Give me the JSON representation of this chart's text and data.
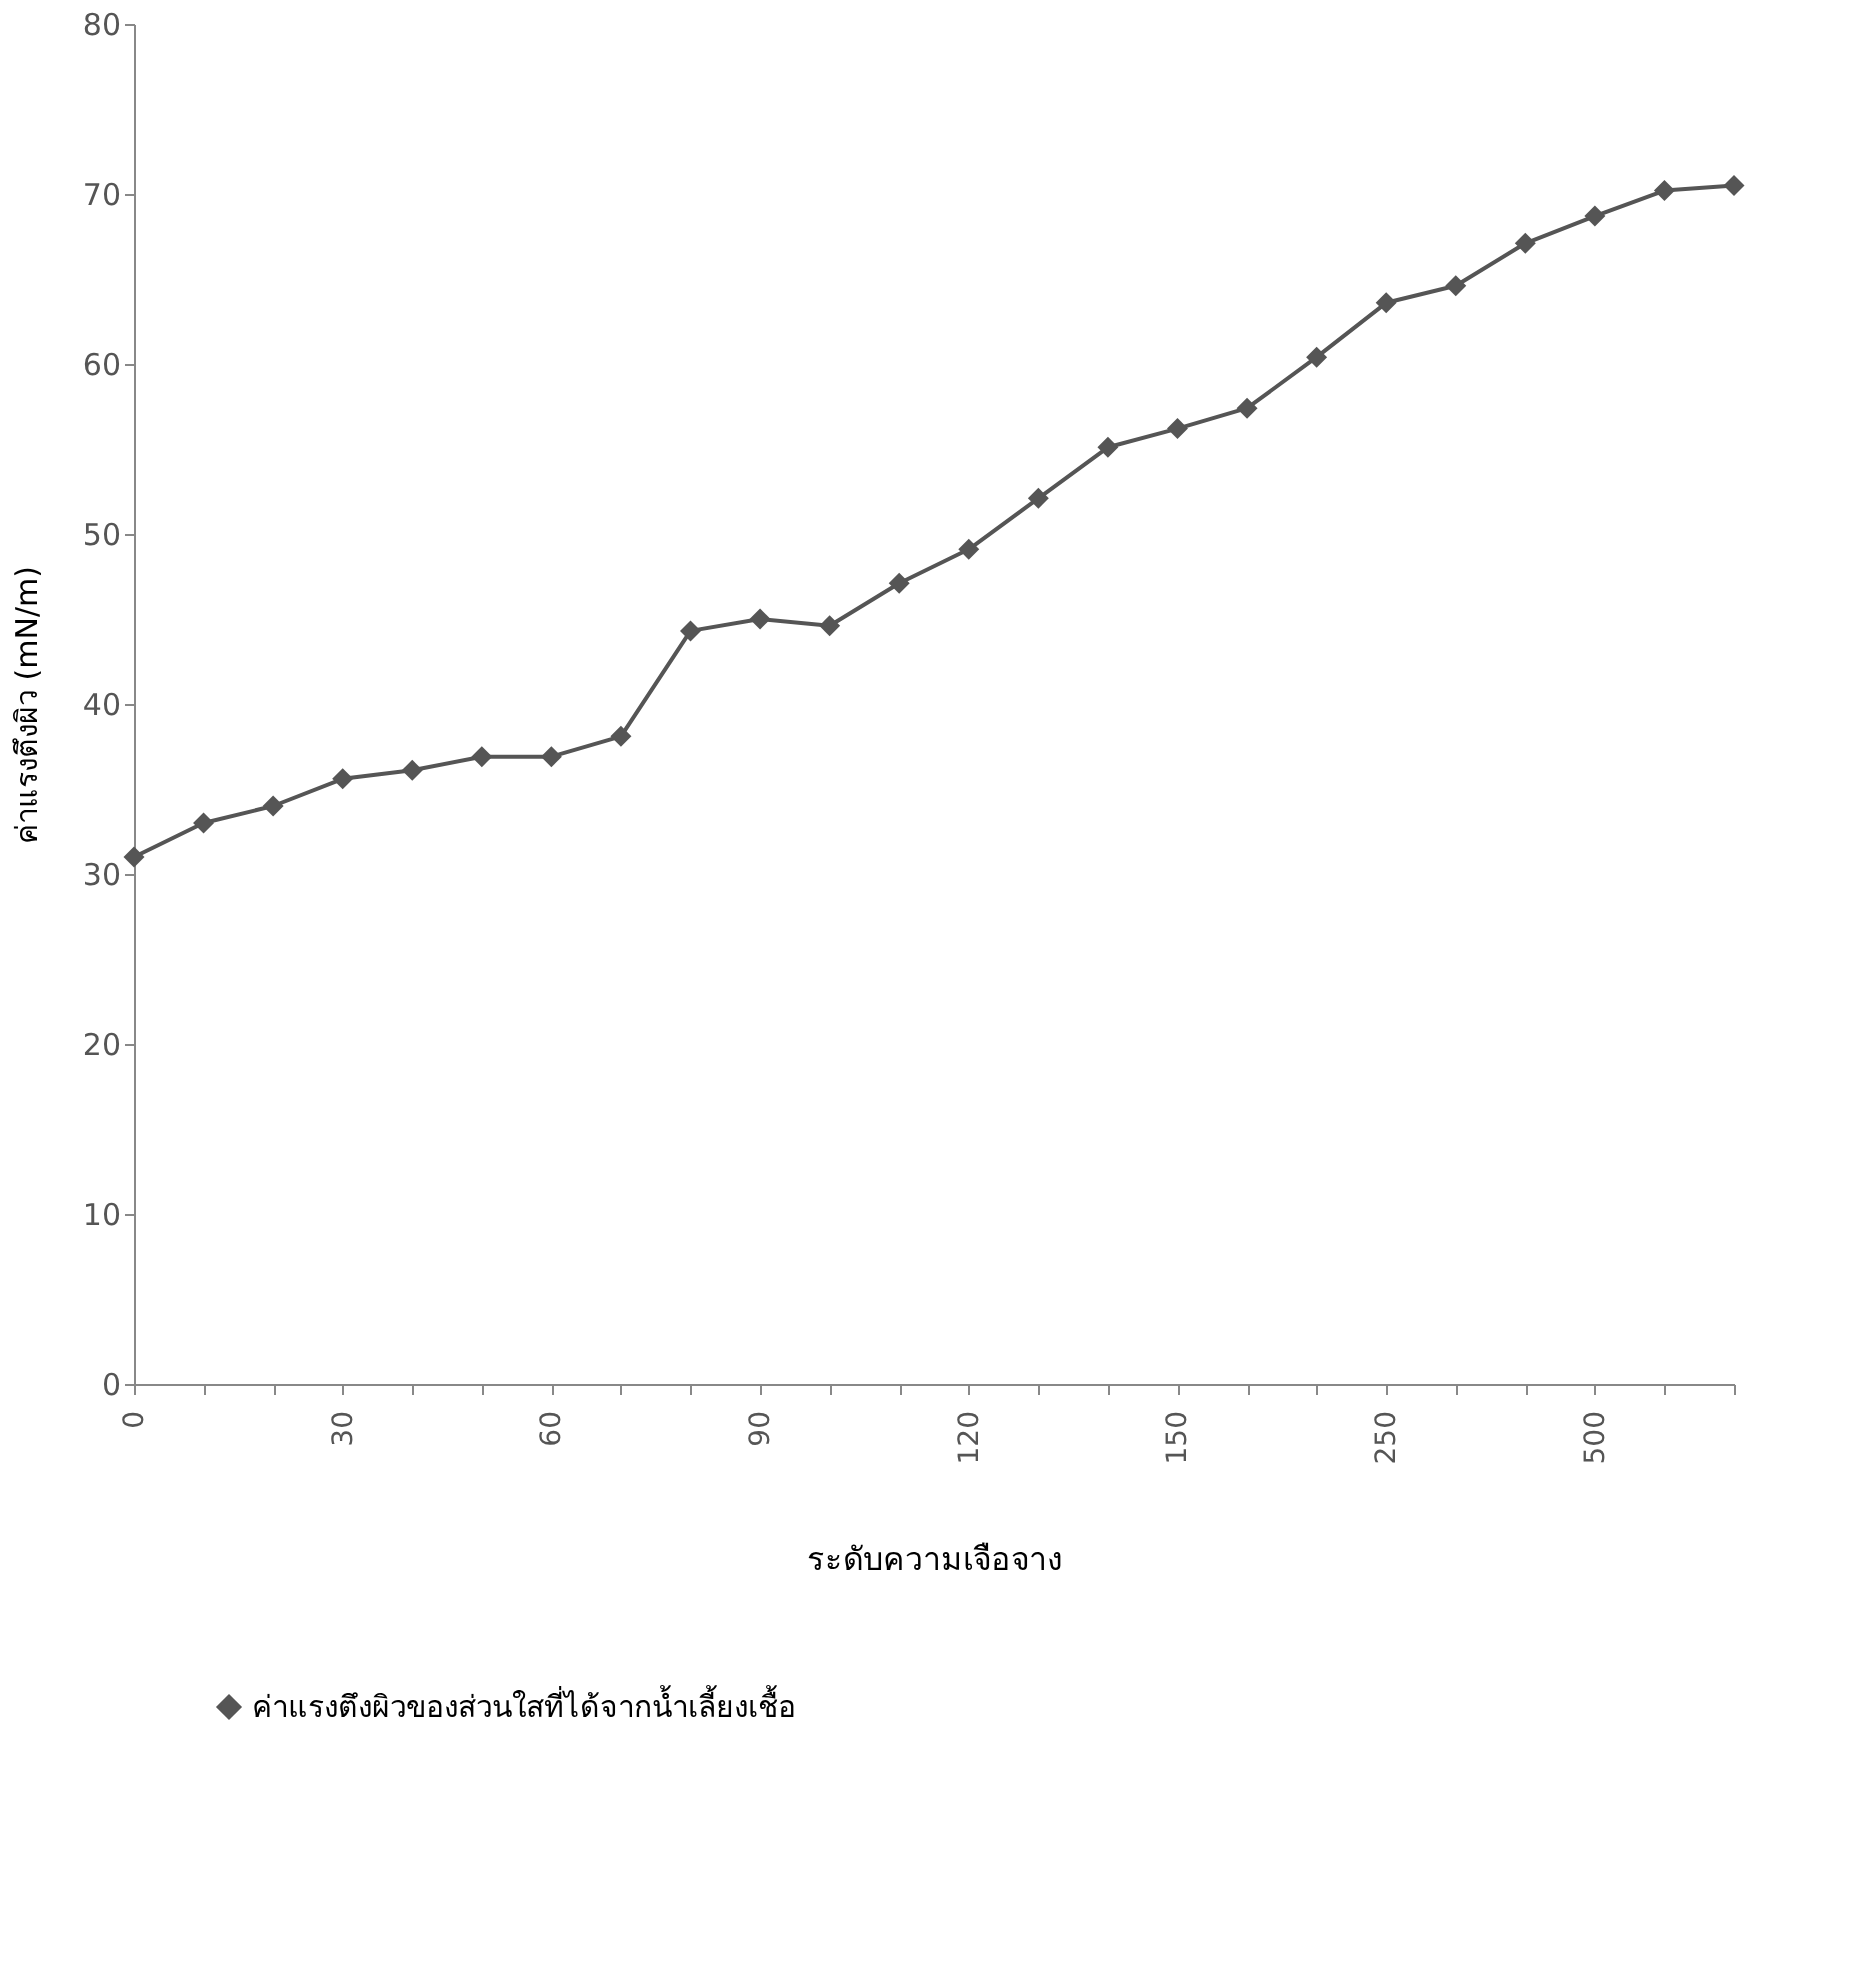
{
  "chart_data": {
    "type": "line",
    "xlabel": "ระดับความเจือจาง",
    "ylabel": "ค่าแรงตึงผิว (mN/m)",
    "categories": [
      "0",
      null,
      null,
      "30",
      null,
      null,
      "60",
      null,
      null,
      "90",
      null,
      null,
      "120",
      null,
      null,
      "150",
      null,
      null,
      "250",
      null,
      null,
      "500",
      null,
      null
    ],
    "series": [
      {
        "name": "ค่าแรงตึงผิวของส่วนใสที่ได้จากน้ำเลี้ยงเชื้อ",
        "color": "#555555",
        "values": [
          31,
          33,
          34,
          35.6,
          36.1,
          36.9,
          36.9,
          38.1,
          44.3,
          45,
          44.6,
          47.1,
          49.1,
          52.1,
          55.1,
          56.2,
          57.4,
          60.4,
          63.6,
          64.6,
          67.1,
          68.7,
          70.2,
          70.5
        ]
      }
    ],
    "ylim": [
      0,
      80
    ],
    "yticks": [
      0,
      10,
      20,
      30,
      40,
      50,
      60,
      70,
      80
    ],
    "grid": false,
    "legend": "bottom",
    "marker": "diamond",
    "line_style": "solid"
  }
}
